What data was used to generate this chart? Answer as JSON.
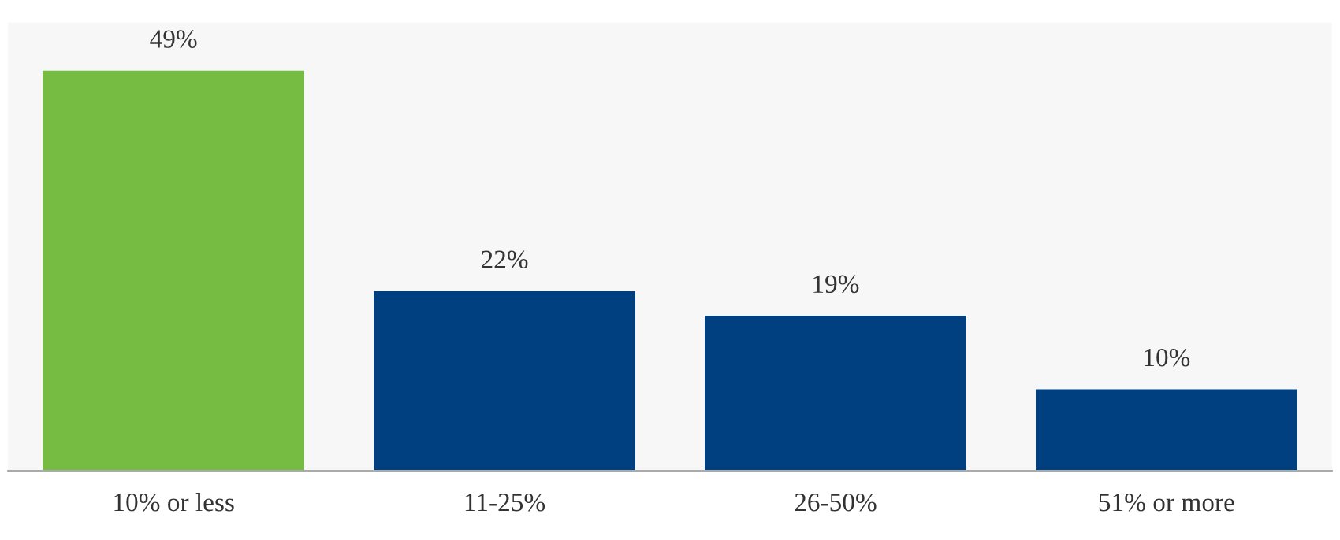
{
  "chart_data": {
    "type": "bar",
    "categories": [
      "10% or less",
      "11-25%",
      "26-50%",
      "51% or more"
    ],
    "values": [
      49,
      22,
      19,
      10
    ],
    "colors": [
      "#76bc43",
      "#003f80",
      "#003f80",
      "#003f80"
    ],
    "value_labels": [
      "49%",
      "22%",
      "19%",
      "10%"
    ],
    "tick_labels": "x",
    "grid": false,
    "legend": false
  }
}
